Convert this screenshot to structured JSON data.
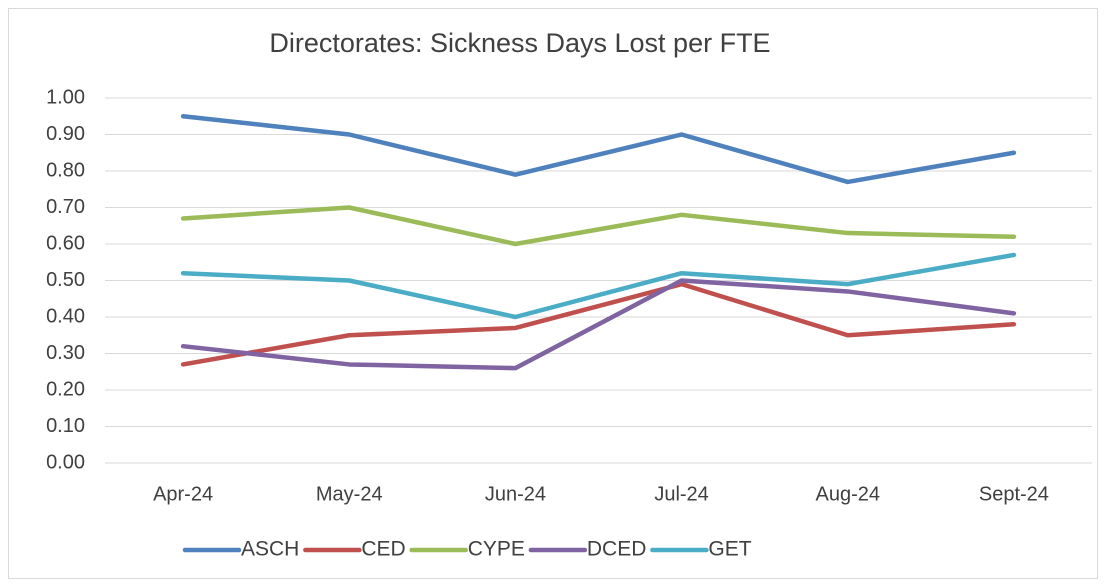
{
  "chart_data": {
    "type": "line",
    "title": "Directorates: Sickness Days Lost per FTE",
    "categories": [
      "Apr-24",
      "May-24",
      "Jun-24",
      "Jul-24",
      "Aug-24",
      "Sept-24"
    ],
    "series": [
      {
        "name": "ASCH",
        "color": "#4f81bd",
        "values": [
          0.95,
          0.9,
          0.79,
          0.9,
          0.77,
          0.85
        ]
      },
      {
        "name": "CED",
        "color": "#c0504d",
        "values": [
          0.27,
          0.35,
          0.37,
          0.49,
          0.35,
          0.38
        ]
      },
      {
        "name": "CYPE",
        "color": "#9bbb59",
        "values": [
          0.67,
          0.7,
          0.6,
          0.68,
          0.63,
          0.62
        ]
      },
      {
        "name": "DCED",
        "color": "#8064a2",
        "values": [
          0.32,
          0.27,
          0.26,
          0.5,
          0.47,
          0.41
        ]
      },
      {
        "name": "GET",
        "color": "#4bacc6",
        "values": [
          0.52,
          0.5,
          0.4,
          0.52,
          0.49,
          0.57
        ]
      }
    ],
    "ylim": [
      0,
      1
    ],
    "yticks": [
      {
        "value": 0,
        "label": "0.00"
      },
      {
        "value": 0.1,
        "label": "0.10"
      },
      {
        "value": 0.2,
        "label": "0.20"
      },
      {
        "value": 0.3,
        "label": "0.30"
      },
      {
        "value": 0.4,
        "label": "0.40"
      },
      {
        "value": 0.5,
        "label": "0.50"
      },
      {
        "value": 0.6,
        "label": "0.60"
      },
      {
        "value": 0.7,
        "label": "0.70"
      },
      {
        "value": 0.8,
        "label": "0.80"
      },
      {
        "value": 0.9,
        "label": "0.90"
      },
      {
        "value": 1,
        "label": "1.00"
      }
    ],
    "grid": true,
    "legend": "bottom"
  }
}
